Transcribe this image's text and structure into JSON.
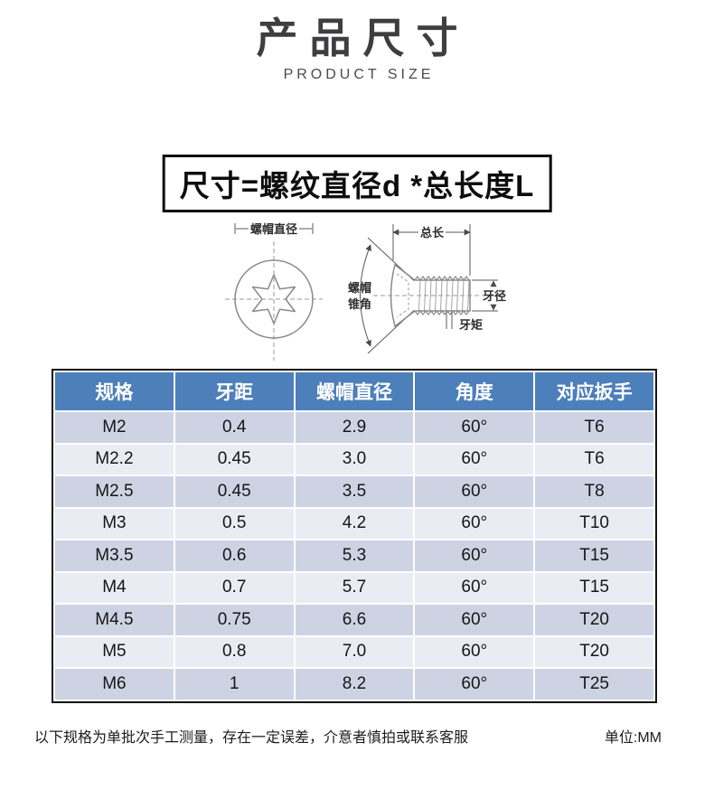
{
  "header": {
    "title": "产品尺寸",
    "subtitle": "PRODUCT SIZE"
  },
  "formula": {
    "text": "尺寸=螺纹直径d *总长度L"
  },
  "diagram": {
    "labels": {
      "cap_diameter": "螺帽直径",
      "total_length": "总长",
      "cone_angle_line1": "螺帽",
      "cone_angle_line2": "锥角",
      "thread_diameter": "牙径",
      "thread_pitch": "牙矩"
    }
  },
  "table": {
    "headers": [
      "规格",
      "牙距",
      "螺帽直径",
      "角度",
      "对应扳手"
    ],
    "rows": [
      [
        "M2",
        "0.4",
        "2.9",
        "60°",
        "T6"
      ],
      [
        "M2.2",
        "0.45",
        "3.0",
        "60°",
        "T6"
      ],
      [
        "M2.5",
        "0.45",
        "3.5",
        "60°",
        "T8"
      ],
      [
        "M3",
        "0.5",
        "4.2",
        "60°",
        "T10"
      ],
      [
        "M3.5",
        "0.6",
        "5.3",
        "60°",
        "T15"
      ],
      [
        "M4",
        "0.7",
        "5.7",
        "60°",
        "T15"
      ],
      [
        "M4.5",
        "0.75",
        "6.6",
        "60°",
        "T20"
      ],
      [
        "M5",
        "0.8",
        "7.0",
        "60°",
        "T20"
      ],
      [
        "M6",
        "1",
        "8.2",
        "60°",
        "T25"
      ]
    ],
    "colors": {
      "header_bg": "#4d7fba",
      "header_text": "#ffffff",
      "row_dark": "#ced3e4",
      "row_light": "#e9ecf3",
      "border": "#141414"
    }
  },
  "footer": {
    "note": "以下规格为单批次手工测量，存在一定误差，介意者慎拍或联系客服",
    "unit": "单位:MM"
  }
}
